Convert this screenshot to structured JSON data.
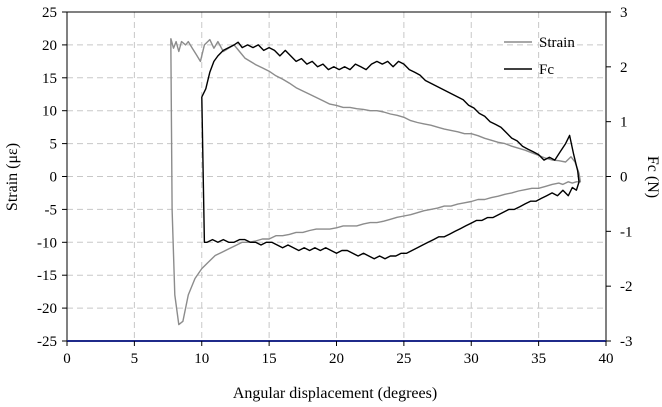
{
  "chart_data": {
    "type": "line",
    "title": "",
    "xlabel": "Angular displacement (degrees)",
    "ylabel": "Strain (με)",
    "y2label": "Fc (N)",
    "xlim": [
      0,
      40
    ],
    "ylim": [
      -25,
      25
    ],
    "y2lim": [
      -3,
      3
    ],
    "xticks": [
      "0",
      "5",
      "10",
      "15",
      "20",
      "25",
      "30",
      "35",
      "40"
    ],
    "yticks": [
      "-25",
      "-20",
      "-15",
      "-10",
      "-5",
      "0",
      "5",
      "10",
      "15",
      "20",
      "25"
    ],
    "y2ticks": [
      "-3",
      "-2",
      "-1",
      "0",
      "1",
      "2",
      "3"
    ],
    "grid": true,
    "legend_position": "top-right",
    "series": [
      {
        "name": "Strain",
        "axis": "left",
        "color": "#8c8c8c",
        "points": [
          [
            7.7,
            21
          ],
          [
            7.9,
            19.5
          ],
          [
            8.1,
            20.5
          ],
          [
            8.3,
            19
          ],
          [
            8.5,
            20.5
          ],
          [
            8.8,
            20
          ],
          [
            9.0,
            20.5
          ],
          [
            9.3,
            19.5
          ],
          [
            9.6,
            18.5
          ],
          [
            9.9,
            17.5
          ],
          [
            10.2,
            20
          ],
          [
            10.6,
            20.8
          ],
          [
            10.9,
            19.5
          ],
          [
            11.2,
            20.5
          ],
          [
            11.6,
            19
          ],
          [
            12.0,
            19.5
          ],
          [
            12.4,
            20
          ],
          [
            12.8,
            19
          ],
          [
            13.2,
            18
          ],
          [
            13.6,
            17.5
          ],
          [
            14.0,
            17
          ],
          [
            14.5,
            16.5
          ],
          [
            15.0,
            16
          ],
          [
            15.5,
            15.3
          ],
          [
            16.0,
            14.8
          ],
          [
            16.5,
            14.2
          ],
          [
            17.0,
            13.5
          ],
          [
            17.5,
            13
          ],
          [
            18.0,
            12.5
          ],
          [
            18.5,
            12
          ],
          [
            19.0,
            11.5
          ],
          [
            19.5,
            11
          ],
          [
            20.0,
            10.8
          ],
          [
            20.5,
            10.5
          ],
          [
            21.0,
            10.5
          ],
          [
            21.5,
            10.3
          ],
          [
            22.0,
            10.2
          ],
          [
            22.5,
            10
          ],
          [
            23.0,
            10
          ],
          [
            23.5,
            9.8
          ],
          [
            24.0,
            9.5
          ],
          [
            24.5,
            9.3
          ],
          [
            25.0,
            9
          ],
          [
            25.5,
            8.5
          ],
          [
            26.0,
            8.2
          ],
          [
            26.5,
            8
          ],
          [
            27.0,
            7.8
          ],
          [
            27.5,
            7.5
          ],
          [
            28.0,
            7.2
          ],
          [
            28.5,
            7
          ],
          [
            29.0,
            6.8
          ],
          [
            29.5,
            6.5
          ],
          [
            30.0,
            6.5
          ],
          [
            30.5,
            6.2
          ],
          [
            31.0,
            5.8
          ],
          [
            31.5,
            5.5
          ],
          [
            32.0,
            5.2
          ],
          [
            32.5,
            5
          ],
          [
            33.0,
            4.6
          ],
          [
            33.5,
            4.3
          ],
          [
            34.0,
            4
          ],
          [
            34.5,
            3.6
          ],
          [
            35.0,
            3.2
          ],
          [
            35.5,
            2.8
          ],
          [
            36.0,
            2.5
          ],
          [
            36.5,
            2.4
          ],
          [
            37.0,
            2.2
          ],
          [
            37.4,
            3
          ],
          [
            37.7,
            2.2
          ],
          [
            38.0,
            0.5
          ],
          [
            38.1,
            -0.8
          ],
          [
            37.8,
            -0.8
          ],
          [
            37.5,
            -1
          ],
          [
            37.2,
            -0.8
          ],
          [
            36.8,
            -1.2
          ],
          [
            36.5,
            -1
          ],
          [
            36.0,
            -1.2
          ],
          [
            35.5,
            -1.5
          ],
          [
            35.0,
            -1.8
          ],
          [
            34.5,
            -1.8
          ],
          [
            34.0,
            -2
          ],
          [
            33.5,
            -2.2
          ],
          [
            33.0,
            -2.5
          ],
          [
            32.5,
            -2.7
          ],
          [
            32.0,
            -3
          ],
          [
            31.5,
            -3.2
          ],
          [
            31.0,
            -3.5
          ],
          [
            30.5,
            -3.5
          ],
          [
            30.0,
            -3.8
          ],
          [
            29.5,
            -4
          ],
          [
            29.0,
            -4.2
          ],
          [
            28.5,
            -4.5
          ],
          [
            28.0,
            -4.5
          ],
          [
            27.5,
            -4.8
          ],
          [
            27.0,
            -5
          ],
          [
            26.5,
            -5.2
          ],
          [
            26.0,
            -5.5
          ],
          [
            25.5,
            -5.8
          ],
          [
            25.0,
            -6
          ],
          [
            24.5,
            -6.2
          ],
          [
            24.0,
            -6.5
          ],
          [
            23.5,
            -6.8
          ],
          [
            23.0,
            -7
          ],
          [
            22.5,
            -7
          ],
          [
            22.0,
            -7.2
          ],
          [
            21.5,
            -7.5
          ],
          [
            21.0,
            -7.5
          ],
          [
            20.5,
            -7.5
          ],
          [
            20.0,
            -7.8
          ],
          [
            19.5,
            -8
          ],
          [
            19.0,
            -8
          ],
          [
            18.5,
            -8
          ],
          [
            18.0,
            -8.2
          ],
          [
            17.5,
            -8.5
          ],
          [
            17.0,
            -8.5
          ],
          [
            16.5,
            -8.8
          ],
          [
            16.0,
            -9
          ],
          [
            15.5,
            -9
          ],
          [
            15.0,
            -9.5
          ],
          [
            14.5,
            -9.5
          ],
          [
            14.0,
            -9.8
          ],
          [
            13.5,
            -10
          ],
          [
            13.0,
            -10
          ],
          [
            12.5,
            -10.5
          ],
          [
            12.0,
            -11
          ],
          [
            11.5,
            -11.5
          ],
          [
            11.0,
            -12
          ],
          [
            10.5,
            -13
          ],
          [
            10.0,
            -14
          ],
          [
            9.5,
            -15.5
          ],
          [
            9.0,
            -18
          ],
          [
            8.6,
            -22
          ],
          [
            8.3,
            -22.5
          ],
          [
            8.0,
            -18
          ],
          [
            7.8,
            -5
          ],
          [
            7.7,
            21
          ]
        ]
      },
      {
        "name": "Fc",
        "axis": "right",
        "color": "#000000",
        "points": [
          [
            10.0,
            1.45
          ],
          [
            10.3,
            1.6
          ],
          [
            10.6,
            1.9
          ],
          [
            10.9,
            2.1
          ],
          [
            11.2,
            2.2
          ],
          [
            11.6,
            2.3
          ],
          [
            12.0,
            2.35
          ],
          [
            12.4,
            2.4
          ],
          [
            12.7,
            2.45
          ],
          [
            13.0,
            2.35
          ],
          [
            13.4,
            2.4
          ],
          [
            13.8,
            2.35
          ],
          [
            14.2,
            2.4
          ],
          [
            14.6,
            2.3
          ],
          [
            15.0,
            2.35
          ],
          [
            15.4,
            2.3
          ],
          [
            15.8,
            2.2
          ],
          [
            16.2,
            2.3
          ],
          [
            16.6,
            2.2
          ],
          [
            17.0,
            2.1
          ],
          [
            17.4,
            2.15
          ],
          [
            17.8,
            2.05
          ],
          [
            18.2,
            2.1
          ],
          [
            18.6,
            2.0
          ],
          [
            19.0,
            2.05
          ],
          [
            19.4,
            1.95
          ],
          [
            19.8,
            2.0
          ],
          [
            20.2,
            1.95
          ],
          [
            20.6,
            2.0
          ],
          [
            21.0,
            1.95
          ],
          [
            21.4,
            2.05
          ],
          [
            21.8,
            2.0
          ],
          [
            22.2,
            1.95
          ],
          [
            22.6,
            2.05
          ],
          [
            23.0,
            2.1
          ],
          [
            23.4,
            2.05
          ],
          [
            23.8,
            2.1
          ],
          [
            24.2,
            2.0
          ],
          [
            24.6,
            2.1
          ],
          [
            25.0,
            2.05
          ],
          [
            25.4,
            1.95
          ],
          [
            25.8,
            1.9
          ],
          [
            26.2,
            1.85
          ],
          [
            26.6,
            1.75
          ],
          [
            27.0,
            1.7
          ],
          [
            27.4,
            1.65
          ],
          [
            27.8,
            1.6
          ],
          [
            28.2,
            1.55
          ],
          [
            28.6,
            1.5
          ],
          [
            29.0,
            1.45
          ],
          [
            29.4,
            1.4
          ],
          [
            29.8,
            1.3
          ],
          [
            30.2,
            1.25
          ],
          [
            30.6,
            1.15
          ],
          [
            31.0,
            1.1
          ],
          [
            31.4,
            1.0
          ],
          [
            31.8,
            0.95
          ],
          [
            32.2,
            0.9
          ],
          [
            32.6,
            0.8
          ],
          [
            33.0,
            0.7
          ],
          [
            33.4,
            0.65
          ],
          [
            33.8,
            0.55
          ],
          [
            34.2,
            0.5
          ],
          [
            34.6,
            0.45
          ],
          [
            35.0,
            0.4
          ],
          [
            35.4,
            0.3
          ],
          [
            35.8,
            0.35
          ],
          [
            36.2,
            0.3
          ],
          [
            36.6,
            0.45
          ],
          [
            37.0,
            0.6
          ],
          [
            37.3,
            0.75
          ],
          [
            37.6,
            0.4
          ],
          [
            37.9,
            0.1
          ],
          [
            38.0,
            -0.1
          ],
          [
            37.8,
            -0.25
          ],
          [
            37.5,
            -0.2
          ],
          [
            37.2,
            -0.35
          ],
          [
            36.8,
            -0.25
          ],
          [
            36.4,
            -0.35
          ],
          [
            36.0,
            -0.3
          ],
          [
            35.6,
            -0.35
          ],
          [
            35.2,
            -0.4
          ],
          [
            34.8,
            -0.45
          ],
          [
            34.4,
            -0.45
          ],
          [
            34.0,
            -0.5
          ],
          [
            33.6,
            -0.55
          ],
          [
            33.2,
            -0.6
          ],
          [
            32.8,
            -0.6
          ],
          [
            32.4,
            -0.65
          ],
          [
            32.0,
            -0.7
          ],
          [
            31.6,
            -0.75
          ],
          [
            31.2,
            -0.75
          ],
          [
            30.8,
            -0.8
          ],
          [
            30.4,
            -0.8
          ],
          [
            30.0,
            -0.85
          ],
          [
            29.6,
            -0.9
          ],
          [
            29.2,
            -0.95
          ],
          [
            28.8,
            -1.0
          ],
          [
            28.4,
            -1.05
          ],
          [
            28.0,
            -1.1
          ],
          [
            27.6,
            -1.1
          ],
          [
            27.2,
            -1.15
          ],
          [
            26.8,
            -1.2
          ],
          [
            26.4,
            -1.25
          ],
          [
            26.0,
            -1.3
          ],
          [
            25.6,
            -1.35
          ],
          [
            25.2,
            -1.4
          ],
          [
            24.8,
            -1.4
          ],
          [
            24.4,
            -1.45
          ],
          [
            24.0,
            -1.45
          ],
          [
            23.6,
            -1.5
          ],
          [
            23.2,
            -1.45
          ],
          [
            22.8,
            -1.5
          ],
          [
            22.4,
            -1.45
          ],
          [
            22.0,
            -1.4
          ],
          [
            21.6,
            -1.45
          ],
          [
            21.2,
            -1.4
          ],
          [
            20.8,
            -1.35
          ],
          [
            20.4,
            -1.35
          ],
          [
            20.0,
            -1.4
          ],
          [
            19.6,
            -1.35
          ],
          [
            19.2,
            -1.3
          ],
          [
            18.8,
            -1.35
          ],
          [
            18.4,
            -1.3
          ],
          [
            18.0,
            -1.35
          ],
          [
            17.6,
            -1.3
          ],
          [
            17.2,
            -1.35
          ],
          [
            16.8,
            -1.3
          ],
          [
            16.4,
            -1.25
          ],
          [
            16.0,
            -1.3
          ],
          [
            15.6,
            -1.25
          ],
          [
            15.2,
            -1.2
          ],
          [
            14.8,
            -1.2
          ],
          [
            14.4,
            -1.25
          ],
          [
            14.0,
            -1.2
          ],
          [
            13.6,
            -1.2
          ],
          [
            13.2,
            -1.15
          ],
          [
            12.8,
            -1.15
          ],
          [
            12.4,
            -1.2
          ],
          [
            12.0,
            -1.2
          ],
          [
            11.6,
            -1.15
          ],
          [
            11.2,
            -1.2
          ],
          [
            10.8,
            -1.15
          ],
          [
            10.4,
            -1.2
          ],
          [
            10.2,
            -1.2
          ],
          [
            10.0,
            1.45
          ]
        ]
      }
    ]
  }
}
